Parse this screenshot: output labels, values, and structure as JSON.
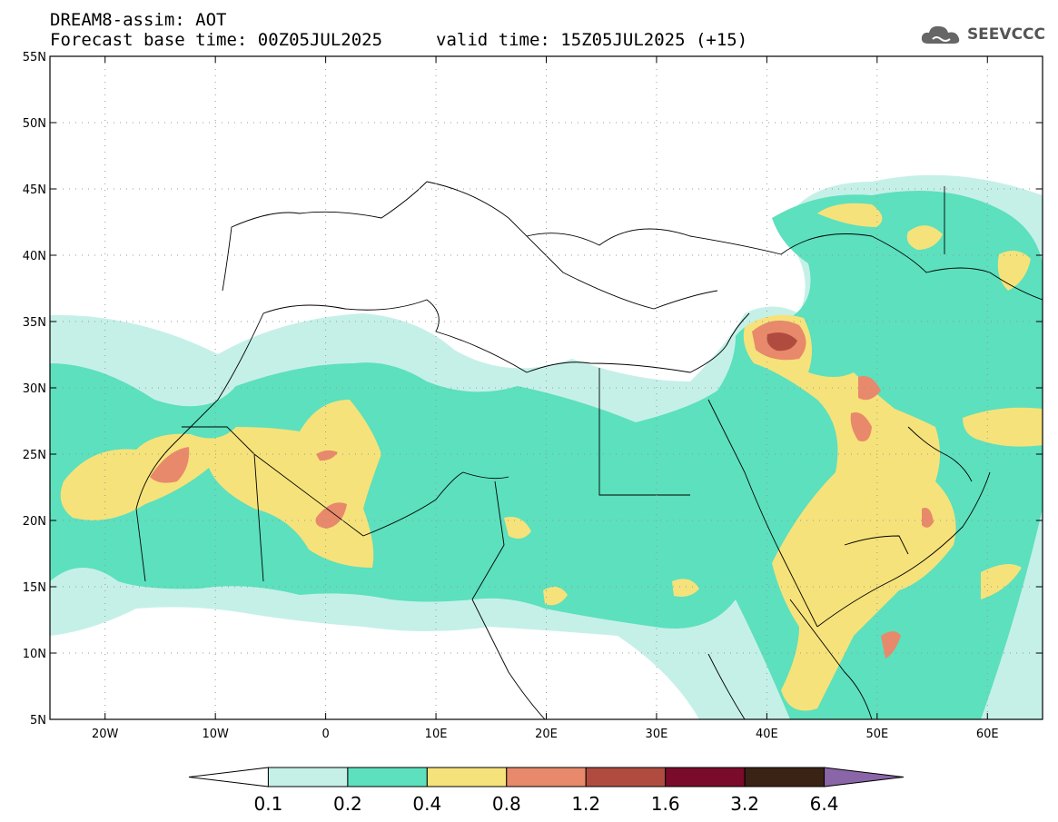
{
  "header": {
    "title": "DREAM8-assim: AOT",
    "base_time": "Forecast base time: 00Z05JUL2025",
    "valid_time": "valid time: 15Z05JUL2025 (+15)"
  },
  "logo": {
    "text": "SEEVCCC",
    "icon": "cloud-icon"
  },
  "map": {
    "lon_range": [
      -25,
      65
    ],
    "lat_range": [
      5,
      55
    ],
    "grid": true,
    "lat_ticks": [
      {
        "v": 55,
        "label": "55N"
      },
      {
        "v": 50,
        "label": "50N"
      },
      {
        "v": 45,
        "label": "45N"
      },
      {
        "v": 40,
        "label": "40N"
      },
      {
        "v": 35,
        "label": "35N"
      },
      {
        "v": 30,
        "label": "30N"
      },
      {
        "v": 25,
        "label": "25N"
      },
      {
        "v": 20,
        "label": "20N"
      },
      {
        "v": 15,
        "label": "15N"
      },
      {
        "v": 10,
        "label": "10N"
      },
      {
        "v": 5,
        "label": "5N"
      }
    ],
    "lon_ticks": [
      {
        "v": -20,
        "label": "20W"
      },
      {
        "v": -10,
        "label": "10W"
      },
      {
        "v": 0,
        "label": "0"
      },
      {
        "v": 10,
        "label": "10E"
      },
      {
        "v": 20,
        "label": "20E"
      },
      {
        "v": 30,
        "label": "30E"
      },
      {
        "v": 40,
        "label": "40E"
      },
      {
        "v": 50,
        "label": "50E"
      },
      {
        "v": 60,
        "label": "60E"
      }
    ]
  },
  "colorbar": {
    "levels": [
      "0.1",
      "0.2",
      "0.4",
      "0.8",
      "1.2",
      "1.6",
      "3.2",
      "6.4"
    ],
    "colors": [
      "#ffffff",
      "#c5f0e8",
      "#5ce0bd",
      "#f6e27a",
      "#e8896b",
      "#b04c3f",
      "#7a0b2a",
      "#3a2214",
      "#8a66a8"
    ]
  }
}
